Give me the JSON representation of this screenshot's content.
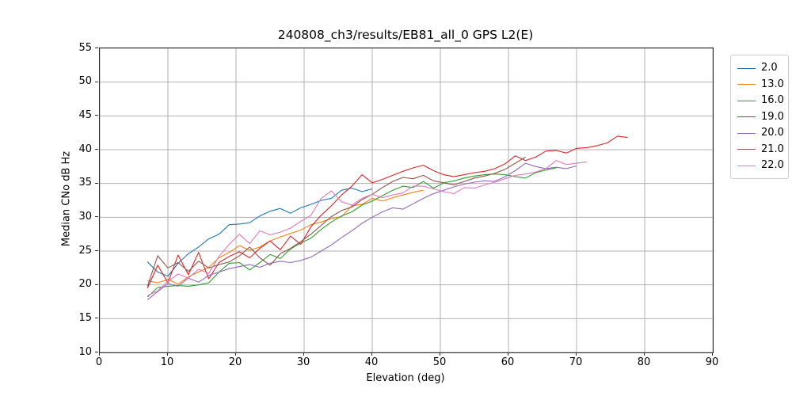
{
  "title": "240808_ch3/results/EB81_all_0 GPS L2(E)",
  "chart_data": {
    "type": "line",
    "title": "240808_ch3/results/EB81_all_0 GPS L2(E)",
    "xlabel": "Elevation (deg)",
    "ylabel": "Median CNo dB Hz",
    "xlim": [
      0,
      90
    ],
    "ylim": [
      10,
      55
    ],
    "xticks": [
      0,
      10,
      20,
      30,
      40,
      50,
      60,
      70,
      80,
      90
    ],
    "yticks": [
      10,
      15,
      20,
      25,
      30,
      35,
      40,
      45,
      50,
      55
    ],
    "grid": true,
    "grid_color": "#b0b0b0",
    "legend_position": "outside-right",
    "series": [
      {
        "name": "2.0",
        "color": "#1f77b4",
        "x": [
          7,
          8.5,
          10,
          11.5,
          13,
          14.5,
          16,
          17.5,
          19,
          20.5,
          22,
          23.5,
          25,
          26.5,
          28,
          29.5,
          31,
          32.5,
          34,
          35.5,
          37,
          38.5,
          40
        ],
        "y": [
          23.4,
          21.9,
          21.3,
          23.2,
          24.6,
          25.6,
          26.8,
          27.5,
          28.9,
          29.0,
          29.2,
          30.2,
          30.9,
          31.3,
          30.6,
          31.4,
          31.9,
          32.5,
          32.8,
          34.0,
          34.3,
          33.8,
          34.2
        ]
      },
      {
        "name": "13.0",
        "color": "#ff7f0e",
        "x": [
          7,
          8.5,
          10,
          11.5,
          13,
          14.5,
          16,
          17.5,
          19,
          20.5,
          22,
          23.5,
          25,
          26.5,
          28,
          29.5,
          31,
          32.5,
          34,
          35.5,
          37,
          38.5,
          40,
          41.5,
          43,
          44.5,
          46,
          47.5
        ],
        "y": [
          20.6,
          20.3,
          20.8,
          20.1,
          21.2,
          21.9,
          22.6,
          24.0,
          24.8,
          25.8,
          25.1,
          25.6,
          26.5,
          27.1,
          27.6,
          28.1,
          28.9,
          29.3,
          29.8,
          30.1,
          31.7,
          31.9,
          32.8,
          32.4,
          32.9,
          33.3,
          33.7,
          34.0
        ]
      },
      {
        "name": "16.0",
        "color": "#2ca02c",
        "x": [
          7,
          8.5,
          10,
          11.5,
          13,
          14.5,
          16,
          17.5,
          19,
          20.5,
          22,
          23.5,
          25,
          26.5,
          28,
          29.5,
          31,
          32.5,
          34,
          35.5,
          37,
          38.5,
          40,
          41.5,
          43,
          44.5,
          46,
          47.5,
          49,
          50.5,
          52,
          53.5,
          55,
          56.5,
          58,
          59.5,
          61,
          62.5,
          64,
          65.5,
          67
        ],
        "y": [
          18.2,
          19.6,
          19.8,
          19.9,
          19.8,
          20.0,
          20.3,
          21.9,
          23.2,
          23.3,
          22.2,
          23.3,
          24.5,
          23.9,
          25.3,
          26.2,
          26.9,
          28.2,
          29.3,
          30.2,
          30.8,
          31.8,
          32.4,
          33.2,
          34.0,
          34.6,
          34.4,
          35.3,
          34.3,
          35.1,
          35.4,
          35.8,
          36.1,
          36.3,
          36.4,
          36.3,
          36.0,
          35.8,
          36.6,
          37.0,
          37.3
        ]
      },
      {
        "name": "19.0",
        "color": "#d62728",
        "x": [
          7,
          8.5,
          10,
          11.5,
          13,
          14.5,
          16,
          17.5,
          19,
          20.5,
          22,
          23.5,
          25,
          26.5,
          28,
          29.5,
          31,
          32.5,
          34,
          35.5,
          37,
          38.5,
          40,
          41.5,
          43,
          44.5,
          46,
          47.5,
          49,
          50.5,
          52,
          53.5,
          55,
          56.5,
          58,
          59.5,
          61,
          62.5,
          64,
          65.5,
          67,
          68.5,
          70,
          71.5,
          73,
          74.5,
          76,
          77.5
        ],
        "y": [
          19.5,
          22.9,
          20.3,
          24.4,
          21.5,
          24.8,
          20.9,
          23.3,
          24.2,
          24.9,
          24.0,
          25.4,
          26.5,
          25.2,
          27.2,
          26.0,
          28.6,
          30.3,
          31.7,
          33.3,
          34.6,
          36.3,
          35.1,
          35.6,
          36.2,
          36.8,
          37.3,
          37.7,
          36.9,
          36.3,
          36.0,
          36.3,
          36.6,
          36.8,
          37.2,
          37.9,
          39.1,
          38.4,
          38.9,
          39.8,
          39.9,
          39.5,
          40.2,
          40.3,
          40.6,
          41.0,
          42.0,
          41.8
        ]
      },
      {
        "name": "20.0",
        "color": "#9467bd",
        "x": [
          7,
          8.5,
          10,
          11.5,
          13,
          14.5,
          16,
          17.5,
          19,
          20.5,
          22,
          23.5,
          25,
          26.5,
          28,
          29.5,
          31,
          32.5,
          34,
          35.5,
          37,
          38.5,
          40,
          41.5,
          43,
          44.5,
          46,
          47.5,
          49,
          50.5,
          52,
          53.5,
          55,
          56.5,
          58,
          59.5,
          61,
          62.5,
          64,
          65.5,
          67,
          68.5,
          70
        ],
        "y": [
          17.8,
          19.0,
          20.2,
          19.8,
          21.0,
          20.4,
          21.4,
          21.9,
          22.4,
          22.7,
          23.0,
          22.6,
          23.2,
          23.5,
          23.3,
          23.6,
          24.1,
          25.0,
          25.9,
          27.0,
          28.0,
          29.1,
          30.0,
          30.8,
          31.4,
          31.2,
          32.0,
          32.8,
          33.5,
          34.0,
          34.5,
          34.9,
          35.2,
          35.4,
          35.3,
          36.0,
          36.9,
          38.0,
          37.5,
          37.2,
          37.4,
          37.2,
          37.6
        ]
      },
      {
        "name": "21.0",
        "color": "#8c564b",
        "x": [
          7,
          8.5,
          10,
          11.5,
          13,
          14.5,
          16,
          17.5,
          19,
          20.5,
          22,
          23.5,
          25,
          26.5,
          28,
          29.5,
          31,
          32.5,
          34,
          35.5,
          37,
          38.5,
          40,
          41.5,
          43,
          44.5,
          46,
          47.5,
          49,
          50.5,
          52,
          53.5,
          55,
          56.5,
          58,
          59.5,
          61,
          62.5
        ],
        "y": [
          19.8,
          24.3,
          22.5,
          23.3,
          22.0,
          23.5,
          22.5,
          23.0,
          23.4,
          24.3,
          25.6,
          24.0,
          22.9,
          24.6,
          25.4,
          26.4,
          27.5,
          28.8,
          30.1,
          31.0,
          31.5,
          32.6,
          33.4,
          34.4,
          35.3,
          35.9,
          35.7,
          36.2,
          35.4,
          35.1,
          34.8,
          35.3,
          35.8,
          36.1,
          36.5,
          37.1,
          38.0,
          38.9
        ]
      },
      {
        "name": "22.0",
        "color": "#e377c2",
        "x": [
          7,
          8.5,
          10,
          11.5,
          13,
          14.5,
          16,
          17.5,
          19,
          20.5,
          22,
          23.5,
          25,
          26.5,
          28,
          29.5,
          31,
          32.5,
          34,
          35.5,
          37,
          38.5,
          40,
          41.5,
          43,
          44.5,
          46,
          47.5,
          49,
          50.5,
          52,
          53.5,
          55,
          56.5,
          58,
          59.5,
          61,
          62.5,
          64,
          65.5,
          67,
          68.5,
          70,
          71.5
        ],
        "y": [
          18.4,
          19.1,
          20.5,
          21.6,
          21.0,
          22.3,
          21.7,
          24.2,
          26.0,
          27.5,
          26.1,
          28.0,
          27.4,
          27.8,
          28.4,
          29.4,
          30.3,
          32.8,
          33.9,
          32.3,
          31.8,
          32.8,
          33.4,
          32.9,
          33.3,
          33.6,
          34.6,
          34.6,
          34.2,
          33.8,
          33.5,
          34.4,
          34.3,
          34.8,
          35.2,
          35.7,
          36.2,
          36.4,
          36.7,
          37.2,
          38.4,
          37.8,
          38.0,
          38.2
        ]
      }
    ]
  },
  "colors": {
    "spine": "#2b2b2b",
    "grid": "#b0b0b0",
    "background": "#ffffff"
  }
}
